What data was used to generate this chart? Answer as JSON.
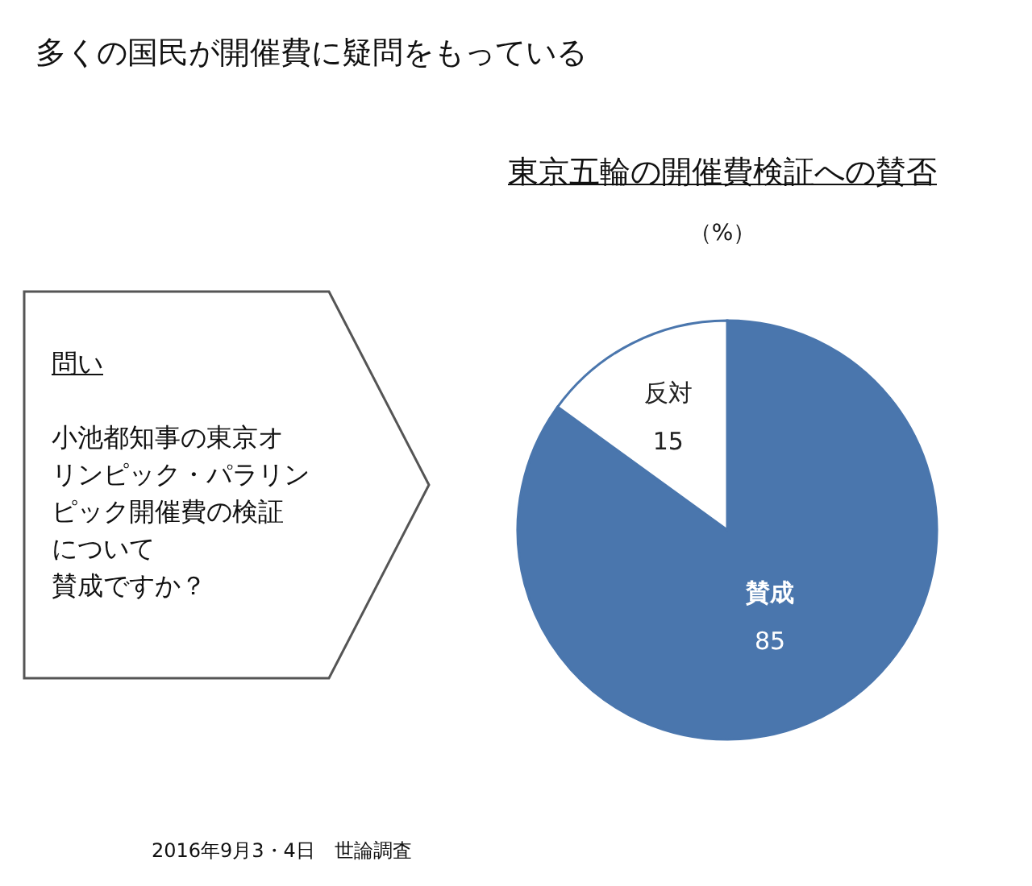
{
  "chart_data": {
    "type": "pie",
    "title": "多くの国民が開催費に疑問をもっている",
    "subtitle": "東京五輪の開催費検証への賛否",
    "ylabel": "（%）",
    "categories": [
      "賛成",
      "反対"
    ],
    "values": [
      85,
      15
    ],
    "colors": [
      "#4a76ad",
      "#ffffff"
    ],
    "data_labels": true,
    "annotations": [
      "問い",
      "小池都知事の東京オ",
      "リンピック・パラリン",
      "ピック開催費の検証",
      "について",
      "賛成ですか？",
      "2016年9月3・4日　世論調査"
    ]
  }
}
